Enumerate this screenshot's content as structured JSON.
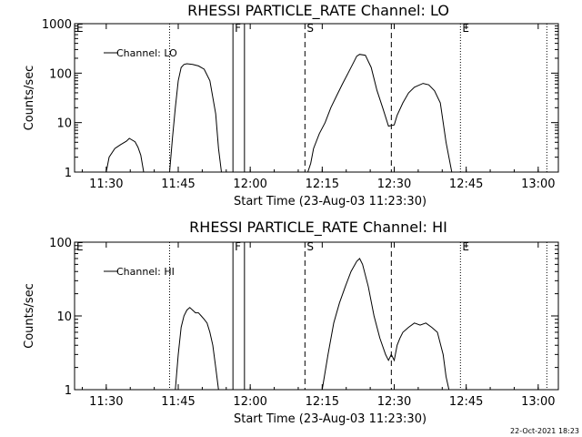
{
  "footer": {
    "stamp": "22-Oct-2021 18:23"
  },
  "chart_data": [
    {
      "type": "line",
      "title": "RHESSI PARTICLE_RATE Channel: LO",
      "xlabel": "Start Time (23-Aug-03 11:23:30)",
      "ylabel": "Counts/sec",
      "yscale": "log",
      "ylim": [
        1,
        1000
      ],
      "yticks": [
        1,
        10,
        100,
        1000
      ],
      "ytick_labels": [
        "1",
        "10",
        "100",
        "1000"
      ],
      "xlim": [
        11.39,
        13.07
      ],
      "xticks": [
        11.5,
        11.75,
        12.0,
        12.25,
        12.5,
        12.75,
        13.0
      ],
      "xtick_labels": [
        "11:30",
        "11:45",
        "12:00",
        "12:15",
        "12:30",
        "12:45",
        "13:00"
      ],
      "legend": {
        "label": "Channel: LO",
        "position": "top-left"
      },
      "markers": [
        {
          "label": "E",
          "time": 11.39,
          "style": "dotted"
        },
        {
          "label": "",
          "time": 11.72,
          "style": "dotted"
        },
        {
          "label": "F",
          "time": 11.94,
          "style": "solid"
        },
        {
          "label": "",
          "time": 11.98,
          "style": "solid"
        },
        {
          "label": "S",
          "time": 12.19,
          "style": "dashed"
        },
        {
          "label": "",
          "time": 12.49,
          "style": "dashed"
        },
        {
          "label": "E",
          "time": 12.73,
          "style": "dotted"
        },
        {
          "label": "",
          "time": 13.03,
          "style": "dotted"
        }
      ],
      "segments": [
        {
          "x": [
            11.5,
            11.51,
            11.53,
            11.55,
            11.57,
            11.58,
            11.6,
            11.61,
            11.62,
            11.63
          ],
          "y": [
            1,
            2,
            3,
            3.6,
            4.2,
            4.8,
            4.1,
            3.2,
            2.2,
            1
          ]
        },
        {
          "x": [
            11.72,
            11.73,
            11.74,
            11.75,
            11.76,
            11.77,
            11.78,
            11.8,
            11.82,
            11.84,
            11.86,
            11.88,
            11.89,
            11.9
          ],
          "y": [
            1,
            5,
            20,
            70,
            130,
            150,
            155,
            150,
            140,
            120,
            70,
            15,
            3,
            1
          ]
        },
        {
          "x": [
            12.2,
            12.21,
            12.22,
            12.24,
            12.26,
            12.28,
            12.3,
            12.32,
            12.34,
            12.36,
            12.37,
            12.38,
            12.4,
            12.42,
            12.44,
            12.46,
            12.48,
            12.5,
            12.51,
            12.53,
            12.55,
            12.57,
            12.6,
            12.62,
            12.64,
            12.66,
            12.68,
            12.7
          ],
          "y": [
            1,
            1.5,
            3,
            6,
            10,
            20,
            35,
            60,
            100,
            170,
            220,
            240,
            230,
            130,
            45,
            20,
            8.5,
            9,
            14,
            25,
            40,
            52,
            62,
            58,
            44,
            25,
            4,
            1
          ]
        }
      ]
    },
    {
      "type": "line",
      "title": "RHESSI PARTICLE_RATE Channel: HI",
      "xlabel": "Start Time (23-Aug-03 11:23:30)",
      "ylabel": "Counts/sec",
      "yscale": "log",
      "ylim": [
        1,
        100
      ],
      "yticks": [
        1,
        10,
        100
      ],
      "ytick_labels": [
        "1",
        "10",
        "100"
      ],
      "xlim": [
        11.39,
        13.07
      ],
      "xticks": [
        11.5,
        11.75,
        12.0,
        12.25,
        12.5,
        12.75,
        13.0
      ],
      "xtick_labels": [
        "11:30",
        "11:45",
        "12:00",
        "12:15",
        "12:30",
        "12:45",
        "13:00"
      ],
      "legend": {
        "label": "Channel: HI",
        "position": "top-left"
      },
      "markers": [
        {
          "label": "E",
          "time": 11.39,
          "style": "dotted"
        },
        {
          "label": "",
          "time": 11.72,
          "style": "dotted"
        },
        {
          "label": "F",
          "time": 11.94,
          "style": "solid"
        },
        {
          "label": "",
          "time": 11.98,
          "style": "solid"
        },
        {
          "label": "S",
          "time": 12.19,
          "style": "dashed"
        },
        {
          "label": "",
          "time": 12.49,
          "style": "dashed"
        },
        {
          "label": "E",
          "time": 12.73,
          "style": "dotted"
        },
        {
          "label": "",
          "time": 13.03,
          "style": "dotted"
        }
      ],
      "segments": [
        {
          "x": [
            11.74,
            11.75,
            11.76,
            11.77,
            11.78,
            11.79,
            11.8,
            11.81,
            11.82,
            11.83,
            11.84,
            11.85,
            11.86,
            11.87,
            11.88,
            11.89
          ],
          "y": [
            1,
            3,
            7,
            10,
            12,
            13,
            12,
            11,
            11,
            10,
            9,
            8,
            6,
            4,
            2,
            1
          ]
        },
        {
          "x": [
            12.25,
            12.27,
            12.29,
            12.31,
            12.33,
            12.35,
            12.37,
            12.38,
            12.39,
            12.41,
            12.43,
            12.45,
            12.47,
            12.48,
            12.49,
            12.5,
            12.51,
            12.52,
            12.53,
            12.55,
            12.57,
            12.59,
            12.61,
            12.63,
            12.65,
            12.67,
            12.68,
            12.69
          ],
          "y": [
            1,
            3,
            8,
            15,
            25,
            40,
            55,
            60,
            50,
            25,
            10,
            5,
            3,
            2.5,
            3,
            2.5,
            4,
            5,
            6,
            7,
            8,
            7.5,
            8,
            7,
            6,
            3,
            1.5,
            1
          ]
        }
      ]
    }
  ]
}
